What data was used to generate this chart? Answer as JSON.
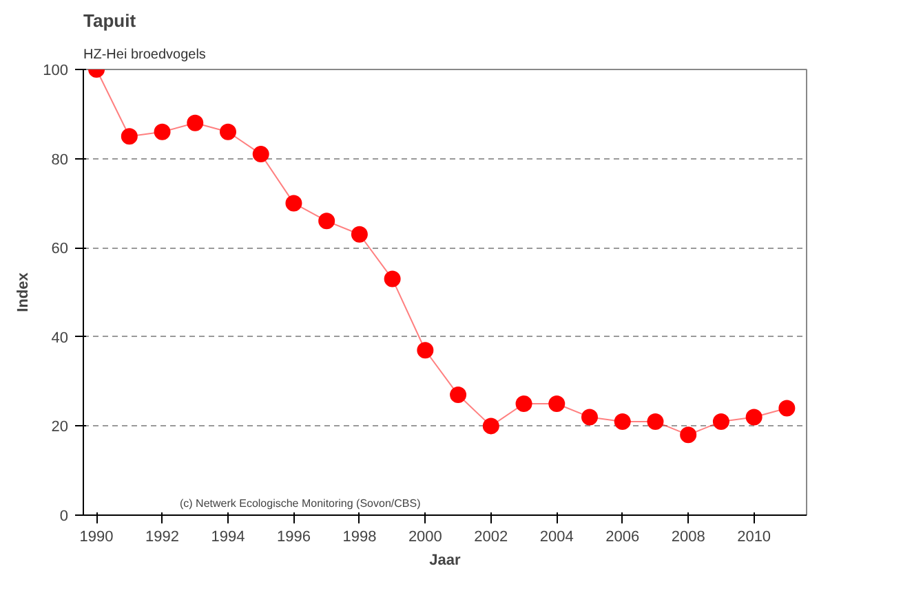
{
  "chart_data": {
    "type": "line",
    "title": "Tapuit",
    "subtitle": "HZ-Hei  broedvogels",
    "xlabel": "Jaar",
    "ylabel": "Index",
    "x": [
      1990,
      1991,
      1992,
      1993,
      1994,
      1995,
      1996,
      1997,
      1998,
      1999,
      2000,
      2001,
      2002,
      2003,
      2004,
      2005,
      2006,
      2007,
      2008,
      2009,
      2010,
      2011
    ],
    "series": [
      {
        "color": "#ff0000",
        "values": [
          100,
          85,
          86,
          88,
          86,
          81,
          70,
          66,
          63,
          53,
          37,
          27,
          20,
          25,
          25,
          22,
          21,
          21,
          18,
          21,
          22,
          24
        ]
      }
    ],
    "xlim": [
      1989.6,
      2011.6
    ],
    "xticks": [
      1990,
      1992,
      1994,
      1996,
      1998,
      2000,
      2002,
      2004,
      2006,
      2008,
      2010
    ],
    "ylim": [
      0,
      100
    ],
    "yticks": [
      0,
      20,
      40,
      60,
      80,
      100
    ],
    "grid": "y",
    "marker": "circle",
    "line_style": "solid",
    "annotations": [
      "(c) Netwerk Ecologische Monitoring (Sovon/CBS)"
    ]
  }
}
